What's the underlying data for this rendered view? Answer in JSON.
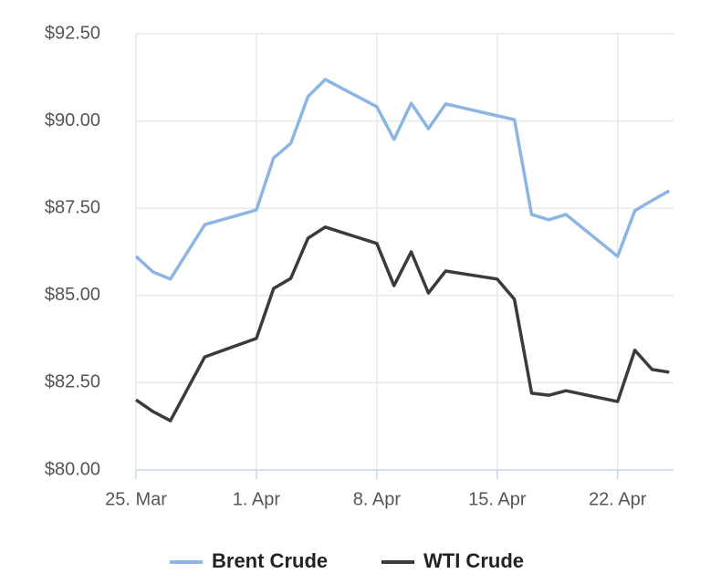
{
  "chart_data": {
    "type": "line",
    "x": [
      0,
      1,
      2,
      4,
      7,
      8,
      9,
      10,
      11,
      14,
      15,
      16,
      17,
      18,
      21,
      22,
      23,
      24,
      25,
      28,
      29,
      30,
      31
    ],
    "series": [
      {
        "name": "Brent Crude",
        "color": "#8db5e3",
        "values": [
          86.12,
          85.67,
          85.47,
          87.03,
          87.45,
          88.94,
          89.36,
          90.7,
          91.19,
          90.41,
          89.47,
          90.51,
          89.78,
          90.49,
          90.15,
          90.04,
          87.32,
          87.17,
          87.32,
          86.12,
          87.43,
          87.72,
          88.0
        ]
      },
      {
        "name": "WTI Crude",
        "color": "#3b3b3f",
        "values": [
          82.01,
          81.67,
          81.41,
          83.24,
          83.77,
          85.2,
          85.49,
          86.64,
          86.96,
          86.49,
          85.28,
          86.25,
          85.07,
          85.7,
          85.47,
          84.89,
          82.2,
          82.14,
          82.27,
          81.96,
          83.43,
          82.88,
          82.8
        ]
      }
    ],
    "xlim": [
      0,
      31.25
    ],
    "xticks": [
      {
        "value": 0,
        "label": "25. Mar"
      },
      {
        "value": 7,
        "label": "1. Apr"
      },
      {
        "value": 14,
        "label": "8. Apr"
      },
      {
        "value": 21,
        "label": "15. Apr"
      },
      {
        "value": 28,
        "label": "22. Apr"
      }
    ],
    "ylim": [
      80,
      92.5
    ],
    "yticks": [
      {
        "value": 80,
        "label": "$80.00"
      },
      {
        "value": 82.5,
        "label": "$82.50"
      },
      {
        "value": 85,
        "label": "$85.00"
      },
      {
        "value": 87.5,
        "label": "$87.50"
      },
      {
        "value": 90,
        "label": "$90.00"
      },
      {
        "value": 92.5,
        "label": "$92.50"
      }
    ],
    "grid": true,
    "legend": "bottom"
  }
}
